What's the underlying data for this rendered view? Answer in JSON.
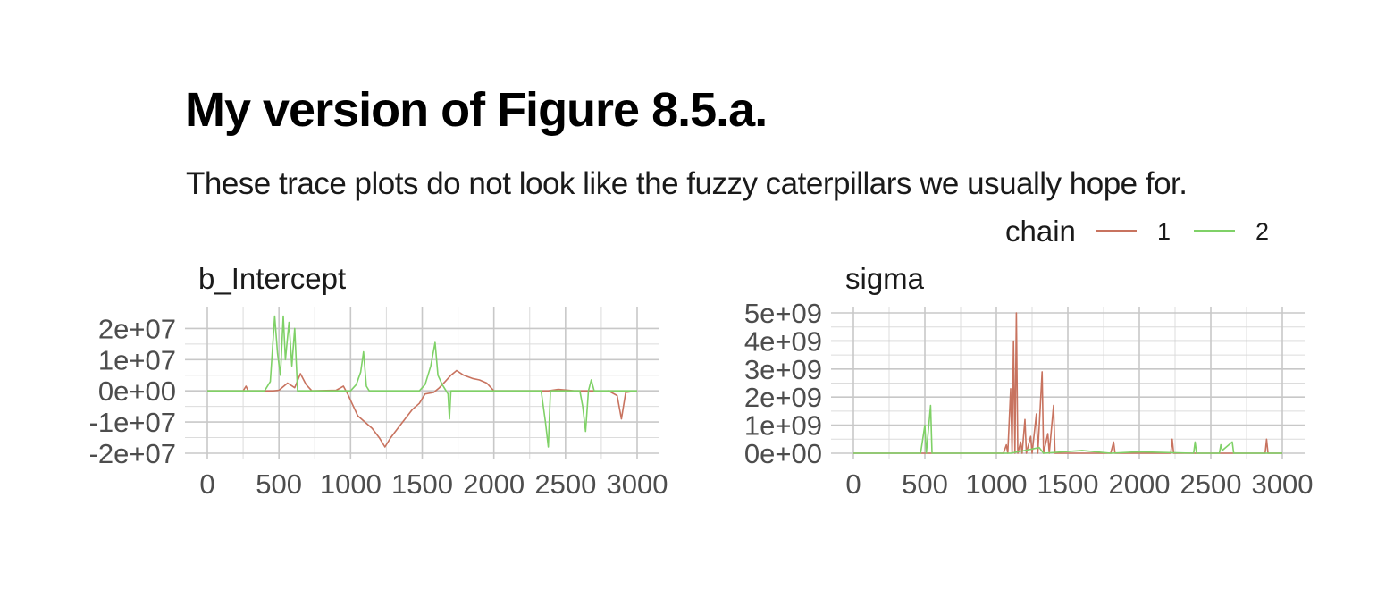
{
  "title": "My version of Figure 8.5.a.",
  "subtitle": "These trace plots do not look like the fuzzy caterpillars we usually hope for.",
  "legend": {
    "title": "chain",
    "entries": [
      {
        "label": "1",
        "color": "#c8735f"
      },
      {
        "label": "2",
        "color": "#7fd167"
      }
    ]
  },
  "chart_data": [
    {
      "type": "line",
      "title": "b_Intercept",
      "xlim": [
        0,
        3000
      ],
      "ylim": [
        -20000000,
        25000000
      ],
      "x_ticks": [
        0,
        500,
        1000,
        1500,
        2000,
        2500,
        3000
      ],
      "x_tick_labels": [
        "0",
        "500",
        "1000",
        "1500",
        "2000",
        "2500",
        "3000"
      ],
      "y_ticks": [
        -20000000,
        -10000000,
        0,
        10000000,
        20000000
      ],
      "y_tick_labels": [
        "-2e+07",
        "-1e+07",
        "0e+00",
        "1e+07",
        "2e+07"
      ],
      "series": [
        {
          "name": "1",
          "color": "#c8735f",
          "points": [
            [
              0,
              0
            ],
            [
              250,
              0
            ],
            [
              270,
              1500000
            ],
            [
              285,
              0
            ],
            [
              460,
              0
            ],
            [
              500,
              200000
            ],
            [
              560,
              2500000
            ],
            [
              610,
              1000000
            ],
            [
              650,
              5500000
            ],
            [
              690,
              2000000
            ],
            [
              730,
              0
            ],
            [
              900,
              200000
            ],
            [
              950,
              1500000
            ],
            [
              980,
              -1000000
            ],
            [
              1010,
              -4000000
            ],
            [
              1050,
              -8000000
            ],
            [
              1100,
              -10000000
            ],
            [
              1150,
              -12000000
            ],
            [
              1200,
              -15000000
            ],
            [
              1240,
              -18000000
            ],
            [
              1280,
              -15000000
            ],
            [
              1330,
              -12000000
            ],
            [
              1380,
              -9000000
            ],
            [
              1430,
              -6000000
            ],
            [
              1480,
              -4000000
            ],
            [
              1520,
              -1000000
            ],
            [
              1580,
              -500000
            ],
            [
              1620,
              1000000
            ],
            [
              1660,
              3000000
            ],
            [
              1700,
              5000000
            ],
            [
              1740,
              6500000
            ],
            [
              1790,
              5000000
            ],
            [
              1850,
              4000000
            ],
            [
              1900,
              3500000
            ],
            [
              1950,
              2500000
            ],
            [
              2000,
              0
            ],
            [
              2300,
              0
            ],
            [
              2380,
              0
            ],
            [
              2450,
              500000
            ],
            [
              2560,
              0
            ],
            [
              2700,
              0
            ],
            [
              2740,
              -200000
            ],
            [
              2800,
              0
            ],
            [
              2860,
              -1500000
            ],
            [
              2890,
              -9000000
            ],
            [
              2920,
              -500000
            ],
            [
              3000,
              0
            ]
          ]
        },
        {
          "name": "2",
          "color": "#7fd167",
          "points": [
            [
              0,
              0
            ],
            [
              400,
              0
            ],
            [
              440,
              3000000
            ],
            [
              470,
              24000000
            ],
            [
              490,
              12000000
            ],
            [
              510,
              5000000
            ],
            [
              530,
              24000000
            ],
            [
              545,
              10000000
            ],
            [
              570,
              22000000
            ],
            [
              590,
              8000000
            ],
            [
              610,
              20000000
            ],
            [
              630,
              0
            ],
            [
              1000,
              0
            ],
            [
              1040,
              2000000
            ],
            [
              1070,
              6000000
            ],
            [
              1090,
              12500000
            ],
            [
              1110,
              1500000
            ],
            [
              1130,
              0
            ],
            [
              1480,
              0
            ],
            [
              1520,
              2000000
            ],
            [
              1560,
              8000000
            ],
            [
              1590,
              15500000
            ],
            [
              1610,
              5000000
            ],
            [
              1640,
              2000000
            ],
            [
              1680,
              -1000000
            ],
            [
              1690,
              -9000000
            ],
            [
              1700,
              0
            ],
            [
              2300,
              0
            ],
            [
              2330,
              0
            ],
            [
              2360,
              -10000000
            ],
            [
              2380,
              -18000000
            ],
            [
              2395,
              0
            ],
            [
              2600,
              0
            ],
            [
              2620,
              -5000000
            ],
            [
              2640,
              -13000000
            ],
            [
              2660,
              0
            ],
            [
              2680,
              3500000
            ],
            [
              2700,
              0
            ],
            [
              3000,
              0
            ]
          ]
        }
      ]
    },
    {
      "type": "line",
      "title": "sigma",
      "xlim": [
        0,
        3000
      ],
      "ylim": [
        0,
        5000000000
      ],
      "x_ticks": [
        0,
        500,
        1000,
        1500,
        2000,
        2500,
        3000
      ],
      "x_tick_labels": [
        "0",
        "500",
        "1000",
        "1500",
        "2000",
        "2500",
        "3000"
      ],
      "y_ticks": [
        0,
        1000000000,
        2000000000,
        3000000000,
        4000000000,
        5000000000
      ],
      "y_tick_labels": [
        "0e+00",
        "1e+09",
        "2e+09",
        "3e+09",
        "4e+09",
        "5e+09"
      ],
      "series": [
        {
          "name": "1",
          "color": "#c8735f",
          "points": [
            [
              0,
              0
            ],
            [
              1050,
              0
            ],
            [
              1070,
              300000000
            ],
            [
              1080,
              0
            ],
            [
              1100,
              2300000000
            ],
            [
              1110,
              0
            ],
            [
              1120,
              4000000000
            ],
            [
              1130,
              0
            ],
            [
              1140,
              5000000000
            ],
            [
              1150,
              0
            ],
            [
              1170,
              400000000
            ],
            [
              1180,
              0
            ],
            [
              1200,
              1200000000
            ],
            [
              1210,
              0
            ],
            [
              1240,
              600000000
            ],
            [
              1250,
              0
            ],
            [
              1280,
              1400000000
            ],
            [
              1290,
              0
            ],
            [
              1320,
              2900000000
            ],
            [
              1330,
              0
            ],
            [
              1360,
              700000000
            ],
            [
              1370,
              0
            ],
            [
              1400,
              1700000000
            ],
            [
              1410,
              0
            ],
            [
              1500,
              0
            ],
            [
              1800,
              0
            ],
            [
              1820,
              400000000
            ],
            [
              1830,
              0
            ],
            [
              2220,
              0
            ],
            [
              2230,
              500000000
            ],
            [
              2240,
              0
            ],
            [
              2880,
              0
            ],
            [
              2890,
              500000000
            ],
            [
              2900,
              0
            ],
            [
              3000,
              0
            ]
          ]
        },
        {
          "name": "2",
          "color": "#7fd167",
          "points": [
            [
              0,
              0
            ],
            [
              470,
              0
            ],
            [
              500,
              1000000000
            ],
            [
              510,
              0
            ],
            [
              540,
              1700000000
            ],
            [
              550,
              0
            ],
            [
              600,
              0
            ],
            [
              1100,
              0
            ],
            [
              1300,
              200000000
            ],
            [
              1330,
              0
            ],
            [
              1600,
              100000000
            ],
            [
              1800,
              0
            ],
            [
              2000,
              50000000
            ],
            [
              2380,
              0
            ],
            [
              2390,
              400000000
            ],
            [
              2400,
              0
            ],
            [
              2560,
              0
            ],
            [
              2570,
              300000000
            ],
            [
              2580,
              100000000
            ],
            [
              2650,
              400000000
            ],
            [
              2660,
              0
            ],
            [
              3000,
              0
            ]
          ]
        }
      ]
    }
  ]
}
